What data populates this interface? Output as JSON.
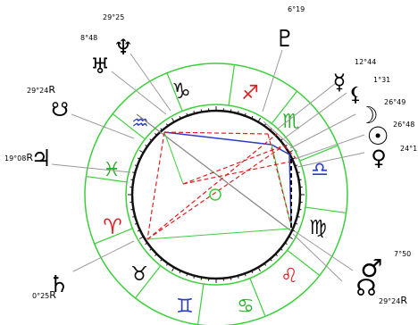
{
  "signs": [
    {
      "name": "aquarius",
      "glyph": "♒",
      "color": "#2b3dc9"
    },
    {
      "name": "capricorn",
      "glyph": "♑",
      "color": "#111111"
    },
    {
      "name": "sagittarius",
      "glyph": "♐",
      "color": "#e02020"
    },
    {
      "name": "scorpio",
      "glyph": "♏",
      "color": "#28b028"
    },
    {
      "name": "libra",
      "glyph": "♎",
      "color": "#2b3dc9"
    },
    {
      "name": "virgo",
      "glyph": "♍",
      "color": "#111111"
    },
    {
      "name": "leo",
      "glyph": "♌",
      "color": "#e02020"
    },
    {
      "name": "cancer",
      "glyph": "♋",
      "color": "#28b028"
    },
    {
      "name": "gemini",
      "glyph": "♊",
      "color": "#2b3dc9"
    },
    {
      "name": "taurus",
      "glyph": "♉",
      "color": "#111111"
    },
    {
      "name": "aries",
      "glyph": "♈",
      "color": "#e02020"
    },
    {
      "name": "pisces",
      "glyph": "♓",
      "color": "#28b028"
    }
  ],
  "planets": [
    {
      "name": "uranus",
      "glyph": "♅",
      "degree": "8°48"
    },
    {
      "name": "neptune",
      "glyph": "♆",
      "degree": "29°25"
    },
    {
      "name": "pluto",
      "glyph": "♇",
      "degree": "6°19"
    },
    {
      "name": "mercury",
      "glyph": "☿",
      "degree": "12°44"
    },
    {
      "name": "lilith",
      "glyph": "⚸",
      "degree": "1°31"
    },
    {
      "name": "moon",
      "glyph": "☽",
      "degree": "26°49"
    },
    {
      "name": "sun",
      "glyph": "☉",
      "degree": "26°48"
    },
    {
      "name": "venus",
      "glyph": "♀",
      "degree": "24°11"
    },
    {
      "name": "south-node",
      "glyph": "☋",
      "degree": "29°24",
      "suffix": "R"
    },
    {
      "name": "jupiter",
      "glyph": "♃",
      "degree": "19°08",
      "suffix": "R"
    },
    {
      "name": "saturn",
      "glyph": "♄",
      "degree": "0°25",
      "suffix": "R"
    },
    {
      "name": "mars",
      "glyph": "♂",
      "degree": "7°50"
    },
    {
      "name": "north-node",
      "glyph": "☊",
      "degree": "29°24",
      "suffix": "R"
    }
  ],
  "colors": {
    "ring": "#3ccf3c",
    "aspect_red": "#e02020",
    "aspect_blue": "#2b3dc9",
    "axis": "#888888",
    "pointer": "#999999"
  }
}
